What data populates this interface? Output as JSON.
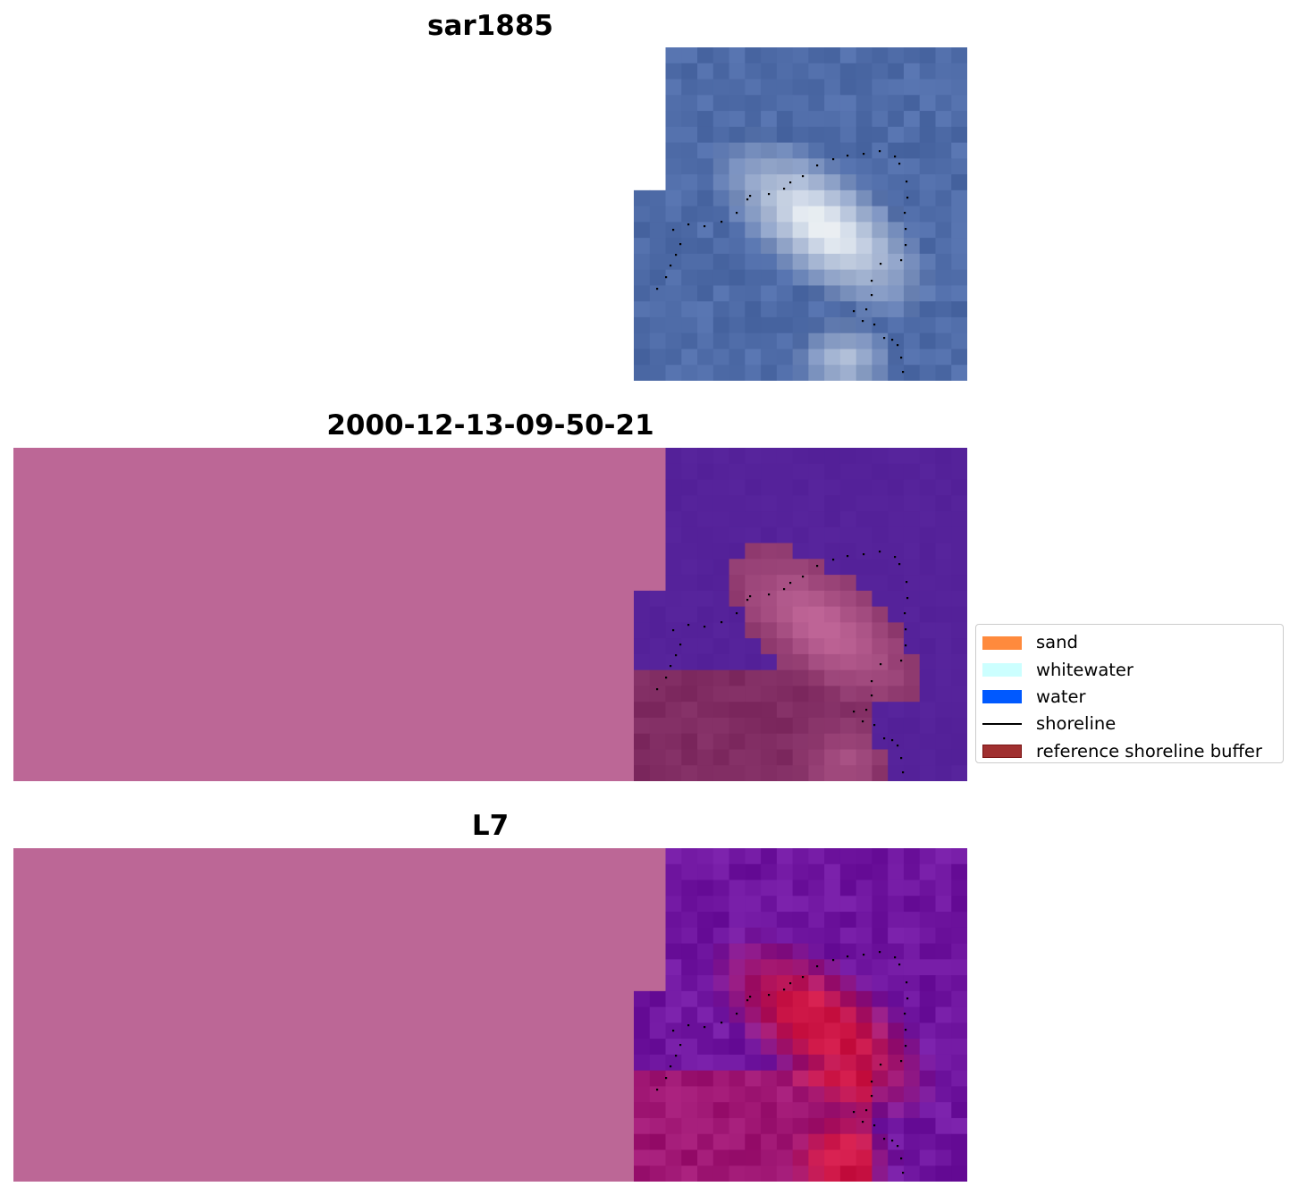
{
  "panels": [
    {
      "title": "sar1885",
      "kind": "rgb"
    },
    {
      "title": "2000-12-13-09-50-21",
      "kind": "classified"
    },
    {
      "title": "L7",
      "kind": "index"
    }
  ],
  "legend": {
    "items": [
      {
        "label": "sand",
        "color": "#ff8a3d",
        "kind": "patch"
      },
      {
        "label": "whitewater",
        "color": "#ccffff",
        "kind": "patch"
      },
      {
        "label": "water",
        "color": "#0059ff",
        "kind": "patch"
      },
      {
        "label": "shoreline",
        "color": "#000000",
        "kind": "line"
      },
      {
        "label": "reference shoreline buffer",
        "color": "#a03030",
        "edge": "#7a1414",
        "kind": "patch"
      }
    ]
  },
  "colors": {
    "nodata_background": "#bc6796",
    "water_class": "#55229a",
    "ocean_rgb": "#4f6ca8",
    "shoreline_points": "#000000"
  }
}
